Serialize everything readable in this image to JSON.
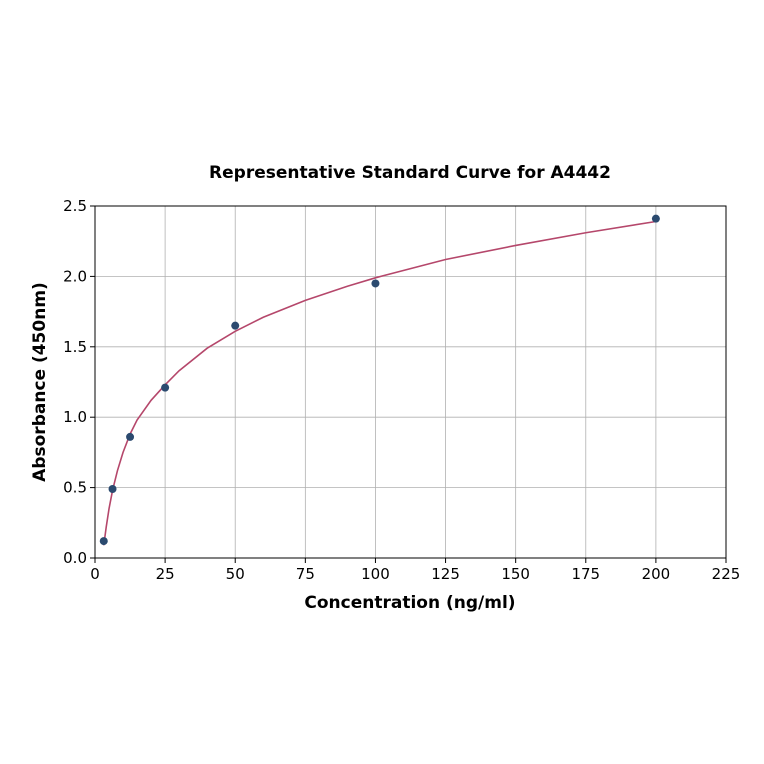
{
  "chart_data": {
    "type": "scatter",
    "title": "Representative Standard Curve for A4442",
    "xlabel": "Concentration (ng/ml)",
    "ylabel": "Absorbance (450nm)",
    "xlim": [
      0,
      225
    ],
    "ylim": [
      0,
      2.5
    ],
    "xticks": [
      "0",
      "25",
      "50",
      "75",
      "100",
      "125",
      "150",
      "175",
      "200",
      "225"
    ],
    "yticks": [
      "0.0",
      "0.5",
      "1.0",
      "1.5",
      "2.0",
      "2.5"
    ],
    "grid": true,
    "points": {
      "x": [
        3.125,
        6.25,
        12.5,
        25,
        50,
        100,
        200
      ],
      "y": [
        0.12,
        0.49,
        0.86,
        1.21,
        1.65,
        1.95,
        2.41
      ]
    },
    "fit_curve": {
      "x": [
        3.125,
        4,
        5,
        6.25,
        8,
        10,
        12.5,
        15,
        20,
        25,
        30,
        40,
        50,
        60,
        75,
        90,
        100,
        125,
        150,
        175,
        200
      ],
      "y": [
        0.09,
        0.22,
        0.35,
        0.48,
        0.62,
        0.75,
        0.88,
        0.98,
        1.12,
        1.23,
        1.33,
        1.49,
        1.61,
        1.71,
        1.83,
        1.93,
        1.99,
        2.12,
        2.22,
        2.31,
        2.39
      ]
    },
    "colors": {
      "points": "#2b4a6f",
      "curve": "#b5476b"
    }
  }
}
